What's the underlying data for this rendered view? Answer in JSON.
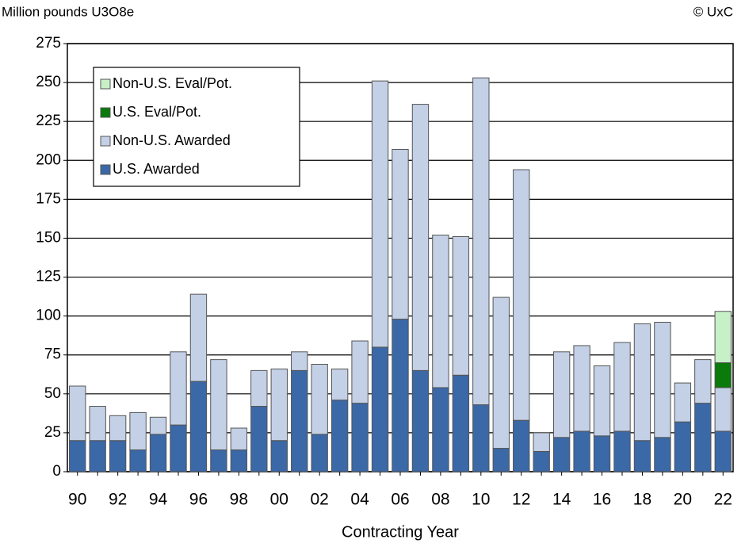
{
  "chart_data": {
    "type": "stacked_bar",
    "y_unit_label": "Million pounds U3O8e",
    "source": "© UxC",
    "xlabel": "Contracting Year",
    "categories": [
      "90",
      null,
      "92",
      null,
      "94",
      null,
      "96",
      null,
      "98",
      null,
      "00",
      null,
      "02",
      null,
      "04",
      null,
      "06",
      null,
      "08",
      null,
      "10",
      null,
      "12",
      null,
      "14",
      null,
      "16",
      null,
      "18",
      null,
      "20",
      null,
      "22"
    ],
    "series": [
      {
        "name": "U.S. Awarded",
        "color": "#3b68a6",
        "values": [
          20,
          20,
          20,
          14,
          24,
          30,
          58,
          14,
          14,
          42,
          20,
          65,
          24,
          46,
          44,
          80,
          98,
          65,
          54,
          62,
          43,
          15,
          33,
          13,
          22,
          26,
          23,
          26,
          20,
          22,
          32,
          44,
          26
        ]
      },
      {
        "name": "Non-U.S. Awarded",
        "color": "#c3d0e6",
        "values": [
          35,
          22,
          16,
          24,
          11,
          47,
          56,
          58,
          14,
          23,
          46,
          12,
          45,
          20,
          40,
          171,
          109,
          171,
          98,
          89,
          210,
          97,
          161,
          12,
          55,
          55,
          45,
          57,
          75,
          74,
          25,
          28,
          28
        ]
      },
      {
        "name": "U.S. Eval/Pot.",
        "color": "#0a7a0a",
        "values": [
          0,
          0,
          0,
          0,
          0,
          0,
          0,
          0,
          0,
          0,
          0,
          0,
          0,
          0,
          0,
          0,
          0,
          0,
          0,
          0,
          0,
          0,
          0,
          0,
          0,
          0,
          0,
          0,
          0,
          0,
          0,
          0,
          16
        ]
      },
      {
        "name": "Non-U.S. Eval/Pot.",
        "color": "#c8f0c8",
        "values": [
          0,
          0,
          0,
          0,
          0,
          0,
          0,
          0,
          0,
          0,
          0,
          0,
          0,
          0,
          0,
          0,
          0,
          0,
          0,
          0,
          0,
          0,
          0,
          0,
          0,
          0,
          0,
          0,
          0,
          0,
          0,
          0,
          33
        ]
      }
    ],
    "ylim": [
      0,
      275
    ],
    "yticks": [
      0,
      25,
      50,
      75,
      100,
      125,
      150,
      175,
      200,
      225,
      250,
      275
    ],
    "grid": true,
    "legend": "upper left"
  }
}
